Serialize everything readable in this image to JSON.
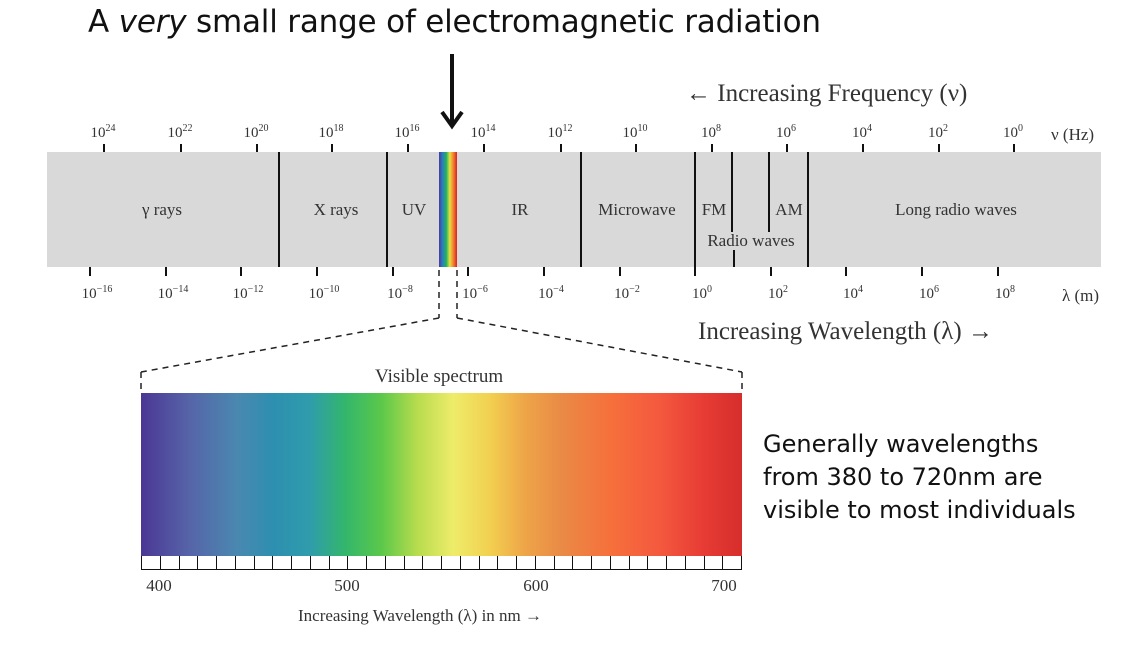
{
  "title": {
    "before": "A ",
    "emphasis": "very",
    "after": " small range of electromagnetic radiation"
  },
  "frequency_axis": {
    "label": "← Increasing Frequency (ν)",
    "unit": "ν (Hz)",
    "ticks": [
      {
        "base": "10",
        "exp": "24"
      },
      {
        "base": "10",
        "exp": "22"
      },
      {
        "base": "10",
        "exp": "20"
      },
      {
        "base": "10",
        "exp": "18"
      },
      {
        "base": "10",
        "exp": "16"
      },
      {
        "base": "10",
        "exp": "14"
      },
      {
        "base": "10",
        "exp": "12"
      },
      {
        "base": "10",
        "exp": "10"
      },
      {
        "base": "10",
        "exp": "8"
      },
      {
        "base": "10",
        "exp": "6"
      },
      {
        "base": "10",
        "exp": "4"
      },
      {
        "base": "10",
        "exp": "2"
      },
      {
        "base": "10",
        "exp": "0"
      }
    ]
  },
  "wavelength_axis": {
    "label": "Increasing Wavelength (λ) →",
    "unit": "λ (m)",
    "ticks": [
      {
        "base": "10",
        "exp": "−16"
      },
      {
        "base": "10",
        "exp": "−14"
      },
      {
        "base": "10",
        "exp": "−12"
      },
      {
        "base": "10",
        "exp": "−10"
      },
      {
        "base": "10",
        "exp": "−8"
      },
      {
        "base": "10",
        "exp": "−6"
      },
      {
        "base": "10",
        "exp": "−4"
      },
      {
        "base": "10",
        "exp": "−2"
      },
      {
        "base": "10",
        "exp": "0"
      },
      {
        "base": "10",
        "exp": "2"
      },
      {
        "base": "10",
        "exp": "4"
      },
      {
        "base": "10",
        "exp": "6"
      },
      {
        "base": "10",
        "exp": "8"
      }
    ]
  },
  "regions": {
    "gamma": "γ rays",
    "xray": "X rays",
    "uv": "UV",
    "ir": "IR",
    "microwave": "Microwave",
    "fm": "FM",
    "am": "AM",
    "radio": "Radio waves",
    "long_radio": "Long radio waves"
  },
  "visible": {
    "title": "Visible spectrum",
    "nm_ticks": [
      "400",
      "500",
      "600",
      "700"
    ],
    "axis_label": "Increasing Wavelength (λ) in nm →"
  },
  "note": {
    "line1": "Generally wavelengths",
    "line2_a": "from ",
    "line2_b": "380",
    "line2_c": " to ",
    "line2_d": "720",
    "line2_e": "nm are",
    "line3": "visible to most individuals"
  },
  "colors": {
    "band": "#d9d9d9",
    "violet": "#4b3794",
    "red": "#d62e2c"
  }
}
